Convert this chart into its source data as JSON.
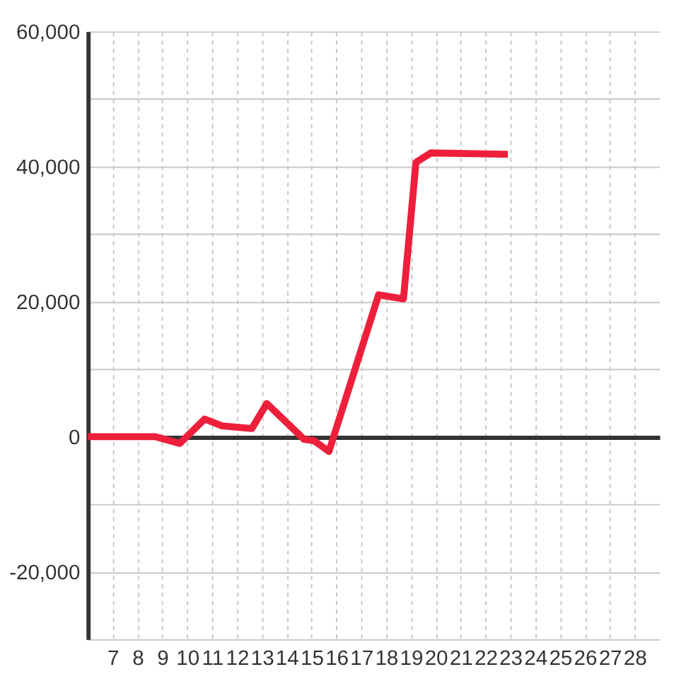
{
  "chart_data": {
    "type": "line",
    "x": [
      6,
      8.7,
      9.7,
      10.7,
      11.4,
      12.6,
      13.2,
      14.7,
      15.1,
      15.7,
      17.7,
      18.7,
      19.2,
      19.8,
      22.9
    ],
    "series": [
      {
        "color": "#ee1f3b",
        "values": [
          0,
          0,
          -1000,
          2600,
          1600,
          1200,
          4900,
          -400,
          -600,
          -2200,
          21000,
          20400,
          40600,
          42000,
          41800
        ]
      }
    ],
    "xlim": [
      6,
      29
    ],
    "xticks": [
      7,
      8,
      9,
      10,
      11,
      12,
      13,
      14,
      15,
      16,
      17,
      18,
      19,
      20,
      21,
      22,
      23,
      24,
      25,
      26,
      27,
      28
    ],
    "ylim": [
      -30000,
      60000
    ],
    "yticks": [
      {
        "value": -30000,
        "label": null
      },
      {
        "value": -20000,
        "label": "-20,000"
      },
      {
        "value": -10000,
        "label": null
      },
      0,
      {
        "value": 10000,
        "label": null
      },
      {
        "value": 20000,
        "label": "20,000"
      },
      {
        "value": 30000,
        "label": null
      },
      {
        "value": 40000,
        "label": "40,000"
      },
      {
        "value": 50000,
        "label": null
      },
      {
        "value": 60000,
        "label": "60,000"
      }
    ],
    "grid": true
  }
}
